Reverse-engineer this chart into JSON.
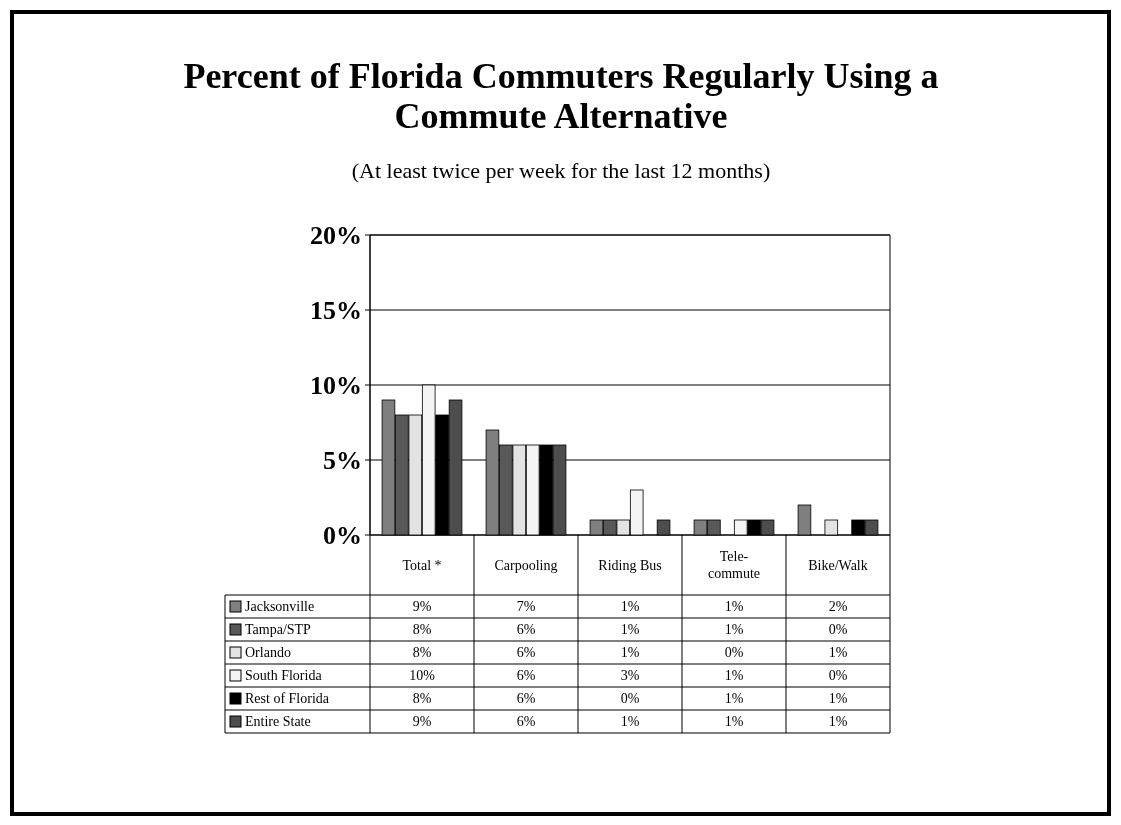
{
  "chart_data": {
    "type": "bar",
    "title": "Percent of Florida Commuters Regularly Using a Commute Alternative",
    "subtitle": "(At least twice per week for the last 12 months)",
    "categories": [
      "Total *",
      "Carpooling",
      "Riding Bus",
      "Tele-commute",
      "Bike/Walk"
    ],
    "ylim": [
      0,
      20
    ],
    "yticks": [
      {
        "value": 0,
        "label": "0%"
      },
      {
        "value": 5,
        "label": "5%"
      },
      {
        "value": 10,
        "label": "10%"
      },
      {
        "value": 15,
        "label": "15%"
      },
      {
        "value": 20,
        "label": "20%"
      }
    ],
    "grid": "y",
    "legend": "bottom",
    "series": [
      {
        "name": "Jacksonville",
        "color": "#7f7f7f",
        "values": [
          9,
          7,
          1,
          1,
          2
        ],
        "value_labels": [
          "9%",
          "7%",
          "1%",
          "1%",
          "2%"
        ]
      },
      {
        "name": "Tampa/STP",
        "color": "#595959",
        "values": [
          8,
          6,
          1,
          1,
          0
        ],
        "value_labels": [
          "8%",
          "6%",
          "1%",
          "1%",
          "0%"
        ]
      },
      {
        "name": "Orlando",
        "color": "#e3e3e3",
        "values": [
          8,
          6,
          1,
          0,
          1
        ],
        "value_labels": [
          "8%",
          "6%",
          "1%",
          "0%",
          "1%"
        ]
      },
      {
        "name": "South Florida",
        "color": "#f4f4f4",
        "values": [
          10,
          6,
          3,
          1,
          0
        ],
        "value_labels": [
          "10%",
          "6%",
          "3%",
          "1%",
          "0%"
        ]
      },
      {
        "name": "Rest of Florida",
        "color": "#000000",
        "values": [
          8,
          6,
          0,
          1,
          1
        ],
        "value_labels": [
          "8%",
          "6%",
          "0%",
          "1%",
          "1%"
        ]
      },
      {
        "name": "Entire State",
        "color": "#4d4d4d",
        "values": [
          9,
          6,
          1,
          1,
          1
        ],
        "value_labels": [
          "9%",
          "6%",
          "1%",
          "1%",
          "1%"
        ]
      }
    ]
  }
}
